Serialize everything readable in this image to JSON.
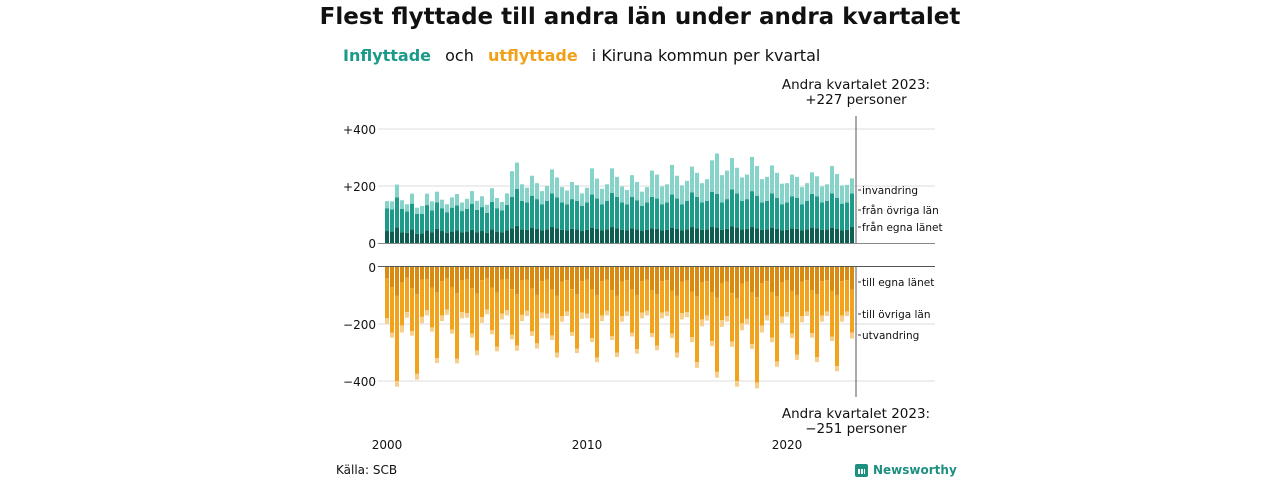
{
  "title": "Flest flyttade till andra län under andra kvartalet",
  "subtitle": {
    "inflyttade": "Inflyttade",
    "och": "och",
    "utflyttade": "utflyttade",
    "rest": "i Kiruna  kommun  per  kvartal"
  },
  "source": "Källa: SCB",
  "brand": "Newsworthy",
  "colors": {
    "in_egna": "#0e5f52",
    "in_ovriga": "#1c9a8a",
    "in_invandring": "#86d3c9",
    "out_egna": "#d98a10",
    "out_ovriga": "#f2a31e",
    "out_utvandring": "#f7cf8c"
  },
  "chart_data": [
    {
      "type": "bar",
      "stacked": true,
      "panel": "inflyttade",
      "annotation": [
        "Andra kvartalet 2023:",
        "+227 personer"
      ],
      "y_ticks": [
        "+400",
        "+200",
        "0"
      ],
      "x_ticks": [
        "2000",
        "2010",
        "2020"
      ],
      "ylim": [
        0,
        400
      ],
      "series_labels": [
        "invandring",
        "från övriga län",
        "från egna länet"
      ],
      "x": [
        "2000Q1",
        "2000Q2",
        "2000Q3",
        "2000Q4",
        "2001Q1",
        "2001Q2",
        "2001Q3",
        "2001Q4",
        "2002Q1",
        "2002Q2",
        "2002Q3",
        "2002Q4",
        "2003Q1",
        "2003Q2",
        "2003Q3",
        "2003Q4",
        "2004Q1",
        "2004Q2",
        "2004Q3",
        "2004Q4",
        "2005Q1",
        "2005Q2",
        "2005Q3",
        "2005Q4",
        "2006Q1",
        "2006Q2",
        "2006Q3",
        "2006Q4",
        "2007Q1",
        "2007Q2",
        "2007Q3",
        "2007Q4",
        "2008Q1",
        "2008Q2",
        "2008Q3",
        "2008Q4",
        "2009Q1",
        "2009Q2",
        "2009Q3",
        "2009Q4",
        "2010Q1",
        "2010Q2",
        "2010Q3",
        "2010Q4",
        "2011Q1",
        "2011Q2",
        "2011Q3",
        "2011Q4",
        "2012Q1",
        "2012Q2",
        "2012Q3",
        "2012Q4",
        "2013Q1",
        "2013Q2",
        "2013Q3",
        "2013Q4",
        "2014Q1",
        "2014Q2",
        "2014Q3",
        "2014Q4",
        "2015Q1",
        "2015Q2",
        "2015Q3",
        "2015Q4",
        "2016Q1",
        "2016Q2",
        "2016Q3",
        "2016Q4",
        "2017Q1",
        "2017Q2",
        "2017Q3",
        "2017Q4",
        "2018Q1",
        "2018Q2",
        "2018Q3",
        "2018Q4",
        "2019Q1",
        "2019Q2",
        "2019Q3",
        "2019Q4",
        "2020Q1",
        "2020Q2",
        "2020Q3",
        "2020Q4",
        "2021Q1",
        "2021Q2",
        "2021Q3",
        "2021Q4",
        "2022Q1",
        "2022Q2",
        "2022Q3",
        "2022Q4",
        "2023Q1",
        "2023Q2"
      ],
      "series": [
        {
          "name": "från egna länet",
          "values": [
            42,
            40,
            55,
            38,
            36,
            48,
            32,
            34,
            45,
            38,
            50,
            42,
            36,
            40,
            44,
            38,
            40,
            46,
            38,
            42,
            36,
            48,
            40,
            38,
            44,
            52,
            60,
            48,
            46,
            54,
            50,
            44,
            48,
            56,
            52,
            46,
            44,
            50,
            48,
            42,
            46,
            54,
            50,
            44,
            48,
            56,
            52,
            46,
            44,
            52,
            48,
            42,
            46,
            52,
            50,
            44,
            46,
            54,
            50,
            44,
            48,
            56,
            52,
            46,
            48,
            56,
            54,
            46,
            50,
            58,
            54,
            48,
            50,
            56,
            52,
            46,
            48,
            54,
            50,
            44,
            46,
            52,
            50,
            44,
            48,
            54,
            52,
            46,
            48,
            54,
            50,
            44,
            46,
            56
          ]
        },
        {
          "name": "från övriga län",
          "values": [
            80,
            78,
            105,
            82,
            75,
            90,
            70,
            68,
            88,
            76,
            92,
            80,
            72,
            84,
            88,
            74,
            80,
            92,
            78,
            84,
            70,
            96,
            82,
            76,
            90,
            110,
            130,
            100,
            96,
            112,
            104,
            92,
            100,
            118,
            108,
            96,
            92,
            104,
            100,
            88,
            96,
            116,
            106,
            92,
            100,
            120,
            110,
            96,
            92,
            110,
            102,
            88,
            96,
            110,
            106,
            92,
            96,
            116,
            106,
            92,
            100,
            122,
            110,
            96,
            100,
            124,
            118,
            96,
            104,
            130,
            120,
            100,
            104,
            126,
            114,
            96,
            100,
            120,
            108,
            92,
            96,
            112,
            108,
            92,
            100,
            118,
            112,
            96,
            100,
            120,
            108,
            94,
            96,
            118
          ]
        },
        {
          "name": "invandring",
          "values": [
            25,
            28,
            45,
            30,
            25,
            35,
            22,
            28,
            40,
            32,
            38,
            30,
            28,
            36,
            40,
            30,
            35,
            44,
            32,
            38,
            28,
            48,
            36,
            30,
            40,
            90,
            92,
            58,
            52,
            70,
            56,
            46,
            52,
            84,
            70,
            54,
            48,
            60,
            55,
            44,
            52,
            92,
            70,
            54,
            58,
            86,
            70,
            56,
            50,
            76,
            64,
            50,
            54,
            92,
            84,
            62,
            64,
            104,
            80,
            66,
            70,
            90,
            84,
            68,
            76,
            110,
            142,
            96,
            100,
            110,
            90,
            82,
            86,
            120,
            104,
            82,
            84,
            98,
            88,
            72,
            68,
            76,
            74,
            60,
            62,
            76,
            70,
            56,
            58,
            96,
            84,
            64,
            62,
            53
          ]
        }
      ]
    },
    {
      "type": "bar",
      "stacked": true,
      "panel": "utflyttade",
      "annotation": [
        "Andra kvartalet 2023:",
        "−251 personer"
      ],
      "y_ticks": [
        "0",
        "−200",
        "−400"
      ],
      "ylim": [
        -450,
        0
      ],
      "series_labels": [
        "till egna länet",
        "till övriga län",
        "utvandring"
      ],
      "series": [
        {
          "name": "till egna länet",
          "values": [
            -40,
            -70,
            -100,
            -55,
            -38,
            -75,
            -95,
            -45,
            -42,
            -72,
            -90,
            -50,
            -40,
            -70,
            -92,
            -48,
            -42,
            -74,
            -94,
            -46,
            -40,
            -72,
            -90,
            -44,
            -42,
            -78,
            -96,
            -48,
            -44,
            -76,
            -98,
            -50,
            -44,
            -80,
            -100,
            -52,
            -46,
            -78,
            -96,
            -50,
            -44,
            -80,
            -98,
            -50,
            -44,
            -82,
            -100,
            -52,
            -46,
            -80,
            -98,
            -50,
            -44,
            -82,
            -96,
            -50,
            -46,
            -84,
            -100,
            -52,
            -48,
            -86,
            -104,
            -54,
            -50,
            -90,
            -108,
            -56,
            -52,
            -92,
            -110,
            -58,
            -52,
            -90,
            -106,
            -56,
            -50,
            -88,
            -102,
            -54,
            -48,
            -84,
            -98,
            -52,
            -46,
            -82,
            -96,
            -50,
            -46,
            -84,
            -98,
            -50,
            -46,
            -80
          ]
        },
        {
          "name": "till övriga län",
          "values": [
            -140,
            -160,
            -300,
            -150,
            -120,
            -150,
            -280,
            -130,
            -110,
            -140,
            -230,
            -120,
            -110,
            -150,
            -230,
            -110,
            -120,
            -160,
            -200,
            -130,
            -110,
            -150,
            -190,
            -120,
            -110,
            -160,
            -180,
            -120,
            -110,
            -150,
            -170,
            -110,
            -120,
            -160,
            -200,
            -120,
            -110,
            -150,
            -190,
            -110,
            -120,
            -170,
            -220,
            -120,
            -110,
            -160,
            -200,
            -120,
            -110,
            -150,
            -190,
            -110,
            -110,
            -150,
            -180,
            -110,
            -110,
            -150,
            -200,
            -110,
            -110,
            -160,
            -230,
            -130,
            -120,
            -170,
            -260,
            -130,
            -120,
            -170,
            -290,
            -140,
            -130,
            -180,
            -300,
            -150,
            -120,
            -160,
            -230,
            -120,
            -110,
            -150,
            -210,
            -120,
            -110,
            -150,
            -220,
            -120,
            -110,
            -160,
            -250,
            -120,
            -110,
            -150
          ]
        },
        {
          "name": "utvandring",
          "values": [
            -20,
            -18,
            -20,
            -25,
            -20,
            -16,
            -20,
            -22,
            -18,
            -15,
            -17,
            -20,
            -18,
            -14,
            -16,
            -22,
            -16,
            -14,
            -16,
            -20,
            -16,
            -14,
            -16,
            -20,
            -18,
            -16,
            -18,
            -22,
            -18,
            -16,
            -18,
            -20,
            -16,
            -16,
            -18,
            -20,
            -16,
            -14,
            -16,
            -22,
            -16,
            -14,
            -16,
            -20,
            -16,
            -14,
            -16,
            -20,
            -16,
            -14,
            -16,
            -20,
            -16,
            -14,
            -16,
            -20,
            -16,
            -16,
            -18,
            -22,
            -18,
            -18,
            -20,
            -24,
            -18,
            -18,
            -20,
            -24,
            -20,
            -18,
            -20,
            -24,
            -20,
            -18,
            -20,
            -24,
            -18,
            -16,
            -18,
            -22,
            -16,
            -16,
            -18,
            -22,
            -16,
            -16,
            -18,
            -22,
            -16,
            -16,
            -18,
            -22,
            -16,
            -21
          ]
        }
      ]
    }
  ]
}
